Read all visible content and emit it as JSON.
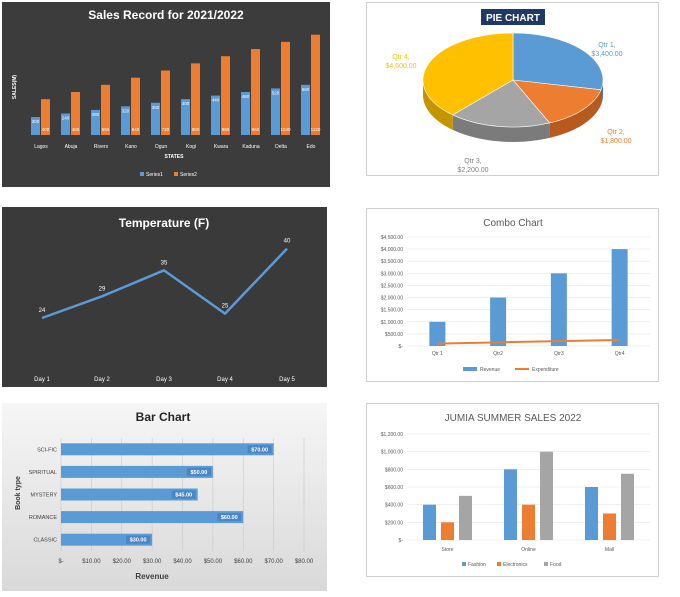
{
  "colors": {
    "blue": "#5b9bd5",
    "orange": "#ed7d31",
    "gray": "#a5a5a5",
    "gold": "#ffc000",
    "navy": "#1f3864"
  },
  "chart_data": [
    {
      "id": "sales",
      "type": "bar",
      "title": "Sales Record for 2021/2022",
      "xlabel": "STATES",
      "ylabel": "SALES(M)",
      "categories": [
        "Lagos",
        "Abuja",
        "Rivers",
        "Kano",
        "Ogun",
        "Kogi",
        "Kwara",
        "Kaduna",
        "Delta",
        "Edo"
      ],
      "series": [
        {
          "name": "Series1",
          "values": [
            200,
            240,
            280,
            320,
            360,
            400,
            440,
            480,
            520,
            560
          ]
        },
        {
          "name": "Series2",
          "values": [
            400,
            480,
            560,
            640,
            720,
            800,
            880,
            960,
            1040,
            1120
          ]
        }
      ],
      "ylim": [
        0,
        1150
      ],
      "legend": "bottom"
    },
    {
      "id": "pie",
      "type": "pie",
      "title": "PIE CHART",
      "categories": [
        "Qtr 1",
        "Qtr 2",
        "Qtr 3",
        "Qtr 4"
      ],
      "values": [
        3400,
        1800,
        2200,
        4600
      ],
      "value_labels": [
        "$3,400.00",
        "$1,800.00",
        "$2,200.00",
        "$4,600.00"
      ]
    },
    {
      "id": "temperature",
      "type": "line",
      "title": "Temperature (F)",
      "categories": [
        "Day 1",
        "Day 2",
        "Day 3",
        "Day 4",
        "Day 5"
      ],
      "values": [
        24,
        29,
        35,
        25,
        40
      ],
      "ylim": [
        15,
        45
      ]
    },
    {
      "id": "combo",
      "type": "bar",
      "title": "Combo Chart",
      "categories": [
        "Qtr 1",
        "Qtr2",
        "Qtr3",
        "Qtr4"
      ],
      "series": [
        {
          "name": "Revenue",
          "kind": "bar",
          "values": [
            1000,
            2000,
            3000,
            4000
          ]
        },
        {
          "name": "Expenditure",
          "kind": "line",
          "values": [
            100,
            150,
            200,
            250
          ]
        }
      ],
      "yticks": [
        "$-",
        "$500.00",
        "$1,000.00",
        "$1,500.00",
        "$2,000.00",
        "$2,500.00",
        "$3,000.00",
        "$3,500.00",
        "$4,000.00",
        "$4,500.00"
      ],
      "ylim": [
        0,
        4500
      ],
      "legend": "bottom"
    },
    {
      "id": "books",
      "type": "bar",
      "orientation": "horizontal",
      "title": "Bar Chart",
      "xlabel": "Revenue",
      "ylabel": "Book type",
      "categories": [
        "SCI-FIC",
        "SPIRITUAL",
        "MYSTERY",
        "ROMANCE",
        "CLASSIC"
      ],
      "values": [
        70,
        50,
        45,
        60,
        30
      ],
      "value_labels": [
        "$70.00",
        "$50.00",
        "$45.00",
        "$60.00",
        "$30.00"
      ],
      "xticks": [
        "$-",
        "$10.00",
        "$20.00",
        "$30.00",
        "$40.00",
        "$50.00",
        "$60.00",
        "$70.00",
        "$80.00"
      ],
      "xlim": [
        0,
        80
      ]
    },
    {
      "id": "jumia",
      "type": "bar",
      "title": "JUMIA SUMMER SALES 2022",
      "categories": [
        "Store",
        "Online",
        "Mall"
      ],
      "series": [
        {
          "name": "Fashion",
          "values": [
            400,
            800,
            600
          ]
        },
        {
          "name": "Electronics",
          "values": [
            200,
            400,
            300
          ]
        },
        {
          "name": "Food",
          "values": [
            500,
            1000,
            750
          ]
        }
      ],
      "yticks": [
        "$-",
        "$200.00",
        "$400.00",
        "$600.00",
        "$800.00",
        "$1,000.00",
        "$1,200.00"
      ],
      "ylim": [
        0,
        1200
      ],
      "legend": "bottom"
    }
  ]
}
